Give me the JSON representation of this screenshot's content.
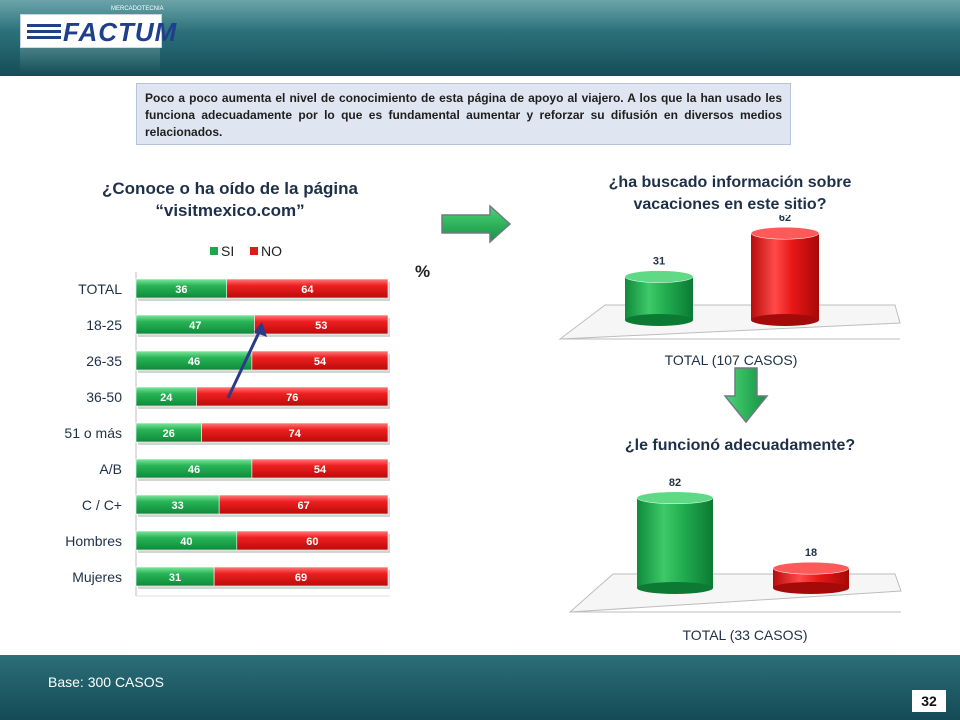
{
  "logo": {
    "name": "FACTUM",
    "tagline": "MERCADOTECNIA"
  },
  "intro_text": "Poco a poco aumenta el nivel de conocimiento de esta página de apoyo al viajero. A los que la han usado les funciona adecuadamente por lo que es fundamental aumentar y reforzar su difusión en diversos medios relacionados.",
  "left_question": {
    "line1": "¿Conoce o ha oído de la página",
    "line2": "“visitmexico.com”"
  },
  "percent_label": "%",
  "right_question1": {
    "line1": "¿ha buscado información sobre",
    "line2": "vacaciones en este sitio?"
  },
  "right_question2": "¿le funcionó adecuadamente?",
  "base_text": "Base: 300 CASOS",
  "page_number": "32",
  "colors": {
    "si": "#1fa54a",
    "no": "#e01818",
    "accent": "#1e3048",
    "header": "#1f5c66"
  },
  "chart_data": [
    {
      "type": "bar",
      "orientation": "horizontal",
      "stacked": true,
      "categories": [
        "TOTAL",
        "18-25",
        "26-35",
        "36-50",
        "51 o más",
        "A/B",
        "C / C+",
        "Hombres",
        "Mujeres"
      ],
      "series": [
        {
          "name": "SI",
          "color": "#1fa54a",
          "values": [
            36,
            47,
            46,
            24,
            26,
            46,
            33,
            40,
            31
          ]
        },
        {
          "name": "NO",
          "color": "#e01818",
          "values": [
            64,
            53,
            54,
            76,
            74,
            54,
            67,
            60,
            69
          ]
        }
      ],
      "xlim": [
        0,
        100
      ],
      "legend": "top"
    },
    {
      "type": "bar",
      "categories": [
        "SI",
        "NO"
      ],
      "values": [
        31,
        62
      ],
      "colors": [
        "#1fa54a",
        "#e01818"
      ],
      "xlabel": "TOTAL (107 CASOS)",
      "ylim": [
        0,
        100
      ]
    },
    {
      "type": "bar",
      "categories": [
        "SI",
        "NO"
      ],
      "values": [
        82,
        18
      ],
      "colors": [
        "#1fa54a",
        "#e01818"
      ],
      "xlabel": "TOTAL (33 CASOS)",
      "ylim": [
        0,
        100
      ]
    }
  ]
}
